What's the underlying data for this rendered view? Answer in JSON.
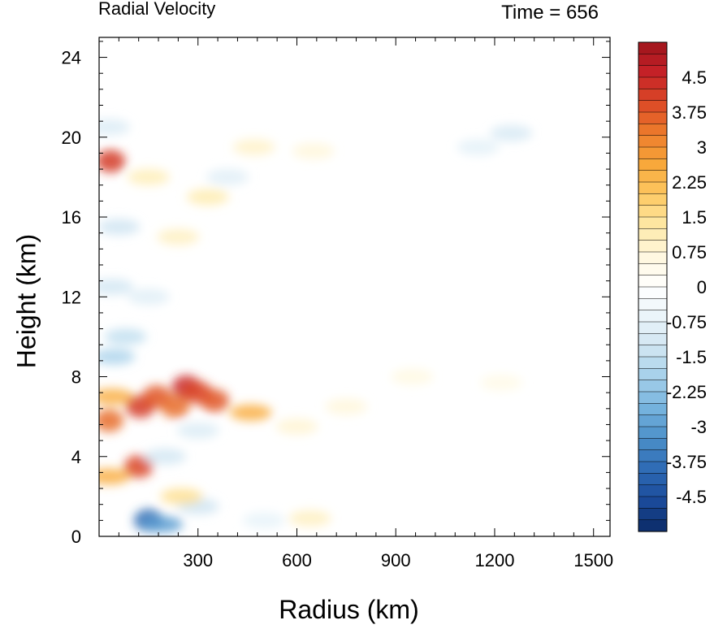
{
  "chart_data": {
    "type": "heatmap",
    "title": "Radial Velocity",
    "subtitle": "Time = 656",
    "xlabel": "Radius (km)",
    "ylabel": "Height (km)",
    "xlim": [
      0,
      1550
    ],
    "ylim": [
      0,
      25
    ],
    "xticks": [
      300,
      600,
      900,
      1200,
      1500
    ],
    "yticks": [
      0,
      4,
      8,
      12,
      16,
      20,
      24
    ],
    "grid": false,
    "colorbar": {
      "placement": "right",
      "min": -5.25,
      "max": 5.25,
      "step": 0.25,
      "labels": [
        "4.5",
        "3.75",
        "3",
        "2.25",
        "1.5",
        "0.75",
        "0",
        "-0.75",
        "-1.5",
        "-2.25",
        "-3",
        "-3.75",
        "-4.5"
      ],
      "label_values": [
        4.5,
        3.75,
        3,
        2.25,
        1.5,
        0.75,
        0,
        -0.75,
        -1.5,
        -2.25,
        -3,
        -3.75,
        -4.5
      ],
      "colors": [
        "#0b2a66",
        "#1b4b9a",
        "#2d6ab4",
        "#4a8ec8",
        "#74b2dd",
        "#a3cfea",
        "#cfe5f2",
        "#eaf4fa",
        "#ffffff",
        "#fff8e0",
        "#fee9a6",
        "#fdc963",
        "#f8a83b",
        "#ee7d2c",
        "#dc4a26",
        "#c62228",
        "#9e141c"
      ]
    },
    "features": [
      {
        "r": 35,
        "z": 18.8,
        "v": 4.2
      },
      {
        "r": 30,
        "z": 20.5,
        "v": -1.0
      },
      {
        "r": 60,
        "z": 15.5,
        "v": -1.3
      },
      {
        "r": 40,
        "z": 12.5,
        "v": -1.2
      },
      {
        "r": 80,
        "z": 10.0,
        "v": -1.5
      },
      {
        "r": 45,
        "z": 9.0,
        "v": -1.8
      },
      {
        "r": 40,
        "z": 7.0,
        "v": 2.5
      },
      {
        "r": 30,
        "z": 5.8,
        "v": 3.5
      },
      {
        "r": 30,
        "z": 3.0,
        "v": 2.5
      },
      {
        "r": 125,
        "z": 6.5,
        "v": 4.2
      },
      {
        "r": 120,
        "z": 3.5,
        "v": 4.0
      },
      {
        "r": 175,
        "z": 7.0,
        "v": 3.8
      },
      {
        "r": 230,
        "z": 6.5,
        "v": 3.5
      },
      {
        "r": 265,
        "z": 7.5,
        "v": 4.5
      },
      {
        "r": 300,
        "z": 7.2,
        "v": 4.0
      },
      {
        "r": 350,
        "z": 6.8,
        "v": 3.8
      },
      {
        "r": 460,
        "z": 6.2,
        "v": 2.5
      },
      {
        "r": 600,
        "z": 5.5,
        "v": 0.8
      },
      {
        "r": 750,
        "z": 6.5,
        "v": 0.7
      },
      {
        "r": 950,
        "z": 8.0,
        "v": 0.6
      },
      {
        "r": 1220,
        "z": 7.7,
        "v": 0.5
      },
      {
        "r": 150,
        "z": 0.8,
        "v": -4.0
      },
      {
        "r": 190,
        "z": 0.6,
        "v": -3.0
      },
      {
        "r": 200,
        "z": 4.0,
        "v": -1.2
      },
      {
        "r": 300,
        "z": 5.3,
        "v": -1.0
      },
      {
        "r": 300,
        "z": 1.5,
        "v": -1.3
      },
      {
        "r": 250,
        "z": 2.0,
        "v": 1.5
      },
      {
        "r": 500,
        "z": 0.8,
        "v": -0.7
      },
      {
        "r": 640,
        "z": 0.9,
        "v": 1.0
      },
      {
        "r": 240,
        "z": 15.0,
        "v": 1.0
      },
      {
        "r": 330,
        "z": 17.0,
        "v": 1.2
      },
      {
        "r": 390,
        "z": 18.0,
        "v": -0.9
      },
      {
        "r": 470,
        "z": 19.5,
        "v": 0.9
      },
      {
        "r": 650,
        "z": 19.3,
        "v": 0.7
      },
      {
        "r": 1250,
        "z": 20.2,
        "v": -1.1
      },
      {
        "r": 1150,
        "z": 19.5,
        "v": -0.8
      },
      {
        "r": 150,
        "z": 12.0,
        "v": -0.9
      },
      {
        "r": 150,
        "z": 18.0,
        "v": 1.1
      }
    ]
  }
}
